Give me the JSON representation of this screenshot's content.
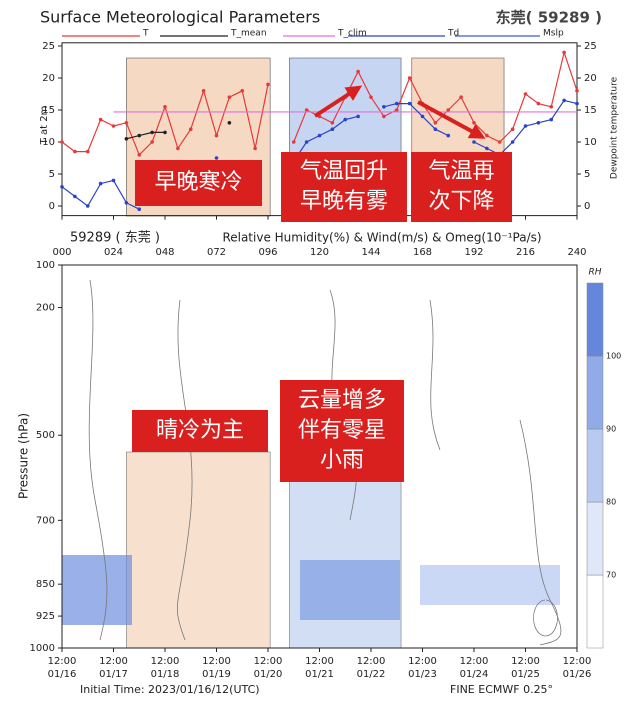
{
  "chart_data": {
    "type": "line",
    "title": "Surface Meteorological Parameters",
    "station": "东莞( 59289 )",
    "ylabel": "T at 2m",
    "y2label": "Dewpoint temperature",
    "x": [
      0,
      6,
      12,
      18,
      24,
      30,
      36,
      42,
      48,
      54,
      60,
      66,
      72,
      78,
      84,
      90,
      96,
      102,
      108,
      114,
      120,
      126,
      132,
      138,
      144,
      150,
      156,
      162,
      168,
      174,
      180,
      186,
      192,
      198,
      204,
      210,
      216,
      222,
      228,
      234,
      240
    ],
    "xlim": [
      0,
      240
    ],
    "xticks": [
      {
        "value": 0,
        "label": "000"
      },
      {
        "value": 24,
        "label": "024"
      },
      {
        "value": 48,
        "label": "048"
      },
      {
        "value": 72,
        "label": "072"
      },
      {
        "value": 96,
        "label": "096"
      },
      {
        "value": 120,
        "label": "120"
      },
      {
        "value": 144,
        "label": "144"
      },
      {
        "value": 168,
        "label": "168"
      },
      {
        "value": 192,
        "label": "192"
      },
      {
        "value": 216,
        "label": "216"
      },
      {
        "value": 240,
        "label": "240"
      }
    ],
    "ylim": [
      -1.5,
      25.5
    ],
    "yticks": [
      0,
      5,
      10,
      15,
      20,
      25
    ],
    "y2lim": [
      -1.5,
      25.5
    ],
    "y2ticks": [
      0,
      5,
      10,
      15,
      20,
      25
    ],
    "series": [
      {
        "name": "T",
        "color": "#e8393a",
        "values": [
          10,
          8.5,
          8.5,
          13.5,
          12.5,
          13,
          8,
          10,
          15.5,
          9,
          12,
          18,
          11,
          17,
          18,
          9,
          19,
          null,
          10,
          15,
          14,
          13,
          17,
          21,
          17,
          14,
          15,
          20,
          16,
          13,
          15,
          17,
          13,
          11,
          10,
          12,
          17.5,
          16,
          15.5,
          24,
          18
        ]
      },
      {
        "name": "T_mean",
        "color": "#222222",
        "values": [
          null,
          null,
          null,
          null,
          null,
          10.5,
          11,
          11.5,
          11.5,
          null,
          null,
          null,
          null,
          13,
          null,
          null,
          null,
          null,
          null,
          null,
          null,
          null,
          null,
          null,
          null,
          null,
          null,
          null,
          null,
          null,
          null,
          null,
          null,
          null,
          null,
          null,
          null,
          null,
          null,
          null,
          null
        ]
      },
      {
        "name": "T_clim",
        "color": "#e070e0",
        "values": [
          null,
          null,
          null,
          null,
          14.7,
          14.7,
          14.7,
          14.7,
          14.7,
          14.7,
          14.7,
          14.7,
          14.7,
          14.7,
          14.7,
          14.7,
          14.7,
          14.7,
          14.7,
          14.7,
          14.7,
          14.7,
          14.7,
          14.7,
          14.7,
          14.7,
          14.7,
          14.7,
          14.7,
          14.7,
          14.7,
          14.7,
          14.7,
          14.7,
          14.7,
          14.7,
          14.7,
          14.7,
          14.7,
          14.7,
          14.7
        ]
      },
      {
        "name": "Td",
        "color": "#2a44c8",
        "axis": "y2",
        "values": [
          3,
          1.5,
          0,
          3.5,
          4,
          0.5,
          -0.5,
          null,
          null,
          null,
          null,
          null,
          7.5,
          null,
          null,
          null,
          null,
          null,
          7,
          10,
          11,
          12,
          13.5,
          14,
          null,
          15.5,
          16,
          16,
          14,
          12,
          11,
          null,
          10,
          9,
          8,
          10,
          12.5,
          13,
          13.5,
          16.5,
          16
        ]
      },
      {
        "name": "Mslp",
        "color": "#3b5bd6",
        "axis": "y2",
        "values": [
          null,
          null,
          null,
          null,
          null,
          null,
          null,
          null,
          null,
          null,
          null,
          null,
          null,
          null,
          null,
          null,
          null,
          null,
          null,
          null,
          null,
          null,
          null,
          null,
          null,
          null,
          null,
          null,
          null,
          null,
          null,
          null,
          null,
          null,
          null,
          null,
          null,
          null,
          null,
          null,
          null
        ]
      }
    ],
    "highlights": [
      {
        "start": 30,
        "end": 97,
        "color": "#f6d9c2"
      },
      {
        "start": 106,
        "end": 158,
        "color": "#c6d6f2"
      },
      {
        "start": 163,
        "end": 206,
        "color": "#f6d9c2"
      }
    ],
    "annotations": [
      {
        "lines": [
          "早晚寒冷"
        ]
      },
      {
        "lines": [
          "气温回升",
          "早晚有雾"
        ]
      },
      {
        "lines": [
          "气温再",
          "次下降"
        ]
      },
      {
        "lines": [
          "晴冷为主"
        ]
      },
      {
        "lines": [
          "云量增多",
          "伴有零星",
          "小雨"
        ]
      }
    ],
    "profile": {
      "station": "59289 ( 东莞 )",
      "title": "Relative Humidity(%) & Wind(m/s) & Omeg(10⁻¹Pa/s)",
      "ylabel": "Pressure (hPa)",
      "ylim": [
        1000,
        100
      ],
      "yticks": [
        100,
        200,
        500,
        700,
        850,
        925,
        1000
      ],
      "xticks": [
        {
          "value": 0,
          "label": [
            "12:00",
            "01/16"
          ]
        },
        {
          "value": 24,
          "label": [
            "12:00",
            "01/17"
          ]
        },
        {
          "value": 48,
          "label": [
            "12:00",
            "01/18"
          ]
        },
        {
          "value": 72,
          "label": [
            "12:00",
            "01/19"
          ]
        },
        {
          "value": 96,
          "label": [
            "12:00",
            "01/20"
          ]
        },
        {
          "value": 120,
          "label": [
            "12:00",
            "01/21"
          ]
        },
        {
          "value": 144,
          "label": [
            "12:00",
            "01/22"
          ]
        },
        {
          "value": 168,
          "label": [
            "12:00",
            "01/23"
          ]
        },
        {
          "value": 192,
          "label": [
            "12:00",
            "01/24"
          ]
        },
        {
          "value": 216,
          "label": [
            "12:00",
            "01/25"
          ]
        },
        {
          "value": 240,
          "label": [
            "12:00",
            "01/26"
          ]
        }
      ],
      "colorbar": {
        "title": "RH",
        "levels": [
          70,
          80,
          90,
          100
        ],
        "colors": [
          "#ffffff",
          "#dfe7f8",
          "#b9caf0",
          "#90abe7",
          "#6486dd"
        ]
      },
      "initial_time": "Initial Time: 2023/01/16/12(UTC)",
      "model": "FINE ECMWF 0.25°"
    }
  }
}
